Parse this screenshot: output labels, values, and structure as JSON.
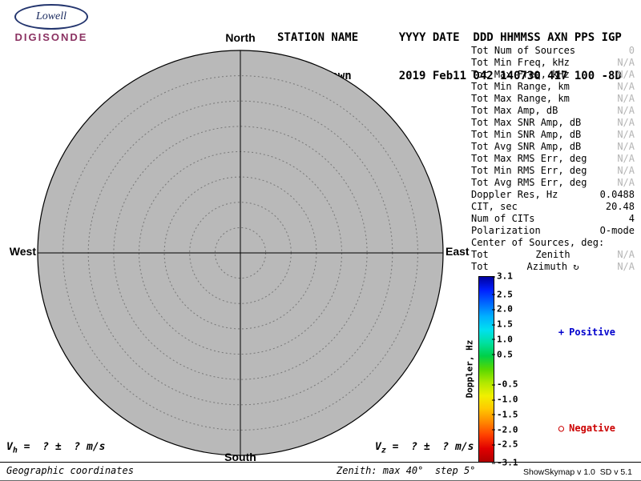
{
  "logo": {
    "top": "Lowell",
    "bottom": "DIGISONDE"
  },
  "header": {
    "line1": "STATION NAME      YYYY DATE  DDD HHMMSS AXN PPS IGP",
    "line2": "Grahamstown       2019 Feb11 042 140730 417 100 -8D"
  },
  "compass": {
    "north": "North",
    "south": "South",
    "west": "West",
    "east": "East"
  },
  "stats": {
    "rows": [
      {
        "label": "Tot Num of Sources",
        "value": "0"
      },
      {
        "label": "Tot Min Freq, kHz",
        "value": "N/A"
      },
      {
        "label": "Tot Max Freq, kHz",
        "value": "N/A"
      },
      {
        "label": "Tot Min Range, km",
        "value": "N/A"
      },
      {
        "label": "Tot Max Range, km",
        "value": "N/A"
      },
      {
        "label": "Tot Max Amp, dB",
        "value": "N/A"
      },
      {
        "label": "Tot Max SNR Amp, dB",
        "value": "N/A"
      },
      {
        "label": "Tot Min SNR Amp, dB",
        "value": "N/A"
      },
      {
        "label": "Tot Avg SNR Amp, dB",
        "value": "N/A"
      },
      {
        "label": "Tot Max RMS Err, deg",
        "value": "N/A"
      },
      {
        "label": "Tot Min RMS Err, deg",
        "value": "N/A"
      },
      {
        "label": "Tot Avg RMS Err, deg",
        "value": "N/A"
      },
      {
        "label": "Doppler Res, Hz",
        "value": "0.0488"
      },
      {
        "label": "CIT, sec",
        "value": "20.48"
      },
      {
        "label": "Num of CITs",
        "value": "4"
      },
      {
        "label": "Polarization",
        "value": "O-mode"
      }
    ],
    "center_header": "Center of Sources, deg:",
    "center_rows": [
      {
        "label": "Tot",
        "mid": "Zenith",
        "value": "N/A"
      },
      {
        "label": "Tot",
        "mid": "Azimuth ↻",
        "value": "N/A"
      }
    ]
  },
  "colorbar": {
    "title": "Doppler, Hz",
    "max": 3.1,
    "min": -3.1,
    "ticks": [
      3.1,
      2.5,
      2.0,
      1.5,
      1.0,
      0.5,
      -0.5,
      -1.0,
      -1.5,
      -2.0,
      -2.5,
      -3.1
    ],
    "gradient": [
      "#0000a0",
      "#0020ff",
      "#0068ff",
      "#00b0ff",
      "#00e0f0",
      "#00e0a0",
      "#00d048",
      "#58d800",
      "#b0e800",
      "#f0f000",
      "#ffc800",
      "#ff8800",
      "#ff4000",
      "#e00000",
      "#b00000"
    ]
  },
  "legend": {
    "positive_glyph": "+",
    "positive_label": "Positive",
    "positive_color": "#0000cd",
    "negative_glyph": "○",
    "negative_label": "Negative",
    "negative_color": "#cc0000"
  },
  "footer": {
    "vh": {
      "base": "V",
      "sub": "h",
      "rest": " =  ? ±  ? m/s"
    },
    "vz": {
      "base": "V",
      "sub": "z",
      "rest": " =  ? ±  ? m/s"
    },
    "coords": "Geographic coordinates",
    "zenith_note": "Zenith: max 40°  step 5°",
    "version": "ShowSkymap v 1.0  SD v 5.1"
  },
  "colors": {
    "plot_fill": "#b9b9b9",
    "muted_text": "#b4b4b4",
    "brand_text": "#8b3262"
  },
  "chart_data": {
    "type": "scatter",
    "projection": "polar",
    "points": [],
    "num_sources": 0,
    "compass_labels": [
      "North",
      "East",
      "South",
      "West"
    ],
    "zenith_max_deg": 40,
    "zenith_step_deg": 5,
    "zenith_rings_deg": [
      5,
      10,
      15,
      20,
      25,
      30,
      35,
      40
    ],
    "colorbar": {
      "label": "Doppler, Hz",
      "min": -3.1,
      "max": 3.1,
      "tick_step": 0.5
    },
    "legend": [
      "Positive",
      "Negative"
    ]
  }
}
